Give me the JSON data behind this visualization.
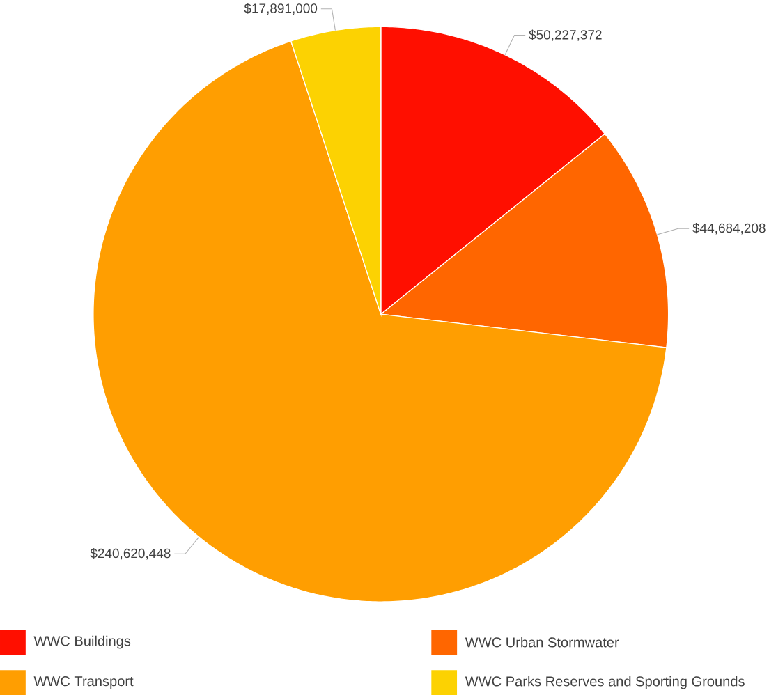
{
  "chart_data": {
    "type": "pie",
    "categories": [
      "WWC Buildings",
      "WWC Urban Stormwater",
      "WWC Transport",
      "WWC Parks Reserves and Sporting Grounds"
    ],
    "values": [
      50227372,
      44684208,
      240620448,
      17891000
    ],
    "value_labels": [
      "$50,227,372",
      "$44,684,208",
      "$240,620,448",
      "$17,891,000"
    ],
    "colors": [
      "#ff0f00",
      "#ff6600",
      "#ff9e01",
      "#fcd202"
    ],
    "legend": "bottom"
  }
}
